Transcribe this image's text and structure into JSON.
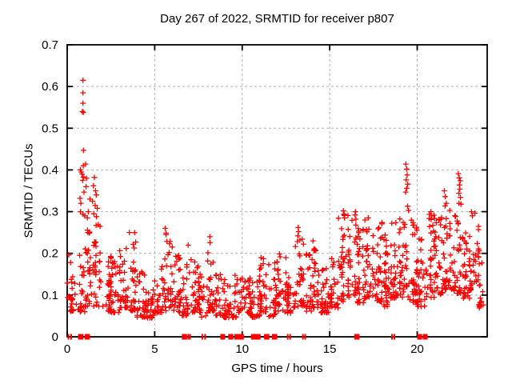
{
  "chart_data": {
    "type": "scatter",
    "title": "Day 267 of 2022, SRMTID for receiver p807",
    "xlabel": "GPS time / hours",
    "ylabel": "SRMTID / TECUs",
    "xlim": [
      0,
      24
    ],
    "ylim": [
      0,
      0.7
    ],
    "xtick_values": [
      0,
      5,
      10,
      15,
      20
    ],
    "xtick_labels": [
      "0",
      "5",
      "10",
      "15",
      "20"
    ],
    "ytick_values": [
      0,
      0.1,
      0.2,
      0.3,
      0.4,
      0.5,
      0.6,
      0.7
    ],
    "ytick_labels": [
      "0",
      "0.1",
      "0.2",
      "0.3",
      "0.4",
      "0.5",
      "0.6",
      "0.7"
    ],
    "grid": true,
    "legend": "none",
    "marker": {
      "shape": "plus",
      "color": "#ff0000",
      "size": 7
    },
    "points_explicit": [
      [
        0.9,
        0.615
      ],
      [
        0.9,
        0.585
      ],
      [
        0.9,
        0.56
      ],
      [
        0.87,
        0.54
      ],
      [
        0.92,
        0.538
      ],
      [
        0.93,
        0.447
      ],
      [
        0.92,
        0.41
      ],
      [
        1.05,
        0.414
      ],
      [
        0.75,
        0.4
      ],
      [
        0.8,
        0.395
      ],
      [
        0.85,
        0.39
      ],
      [
        0.92,
        0.383
      ],
      [
        0.88,
        0.375
      ],
      [
        1.1,
        0.38
      ],
      [
        1.08,
        0.36
      ],
      [
        0.96,
        0.347
      ],
      [
        0.73,
        0.332
      ],
      [
        0.78,
        0.32
      ],
      [
        1.55,
        0.382
      ],
      [
        1.5,
        0.362
      ],
      [
        1.62,
        0.35
      ],
      [
        1.66,
        0.34
      ],
      [
        1.3,
        0.33
      ],
      [
        1.45,
        0.325
      ],
      [
        1.6,
        0.315
      ],
      [
        1.72,
        0.308
      ],
      [
        0.76,
        0.3
      ],
      [
        0.9,
        0.294
      ],
      [
        1.2,
        0.3
      ],
      [
        1.52,
        0.295
      ],
      [
        1.67,
        0.288
      ],
      [
        1.0,
        0.29
      ],
      [
        1.15,
        0.285
      ],
      [
        3.55,
        0.25
      ],
      [
        5.6,
        0.26
      ],
      [
        5.65,
        0.245
      ],
      [
        8.15,
        0.24
      ],
      [
        13.2,
        0.262
      ],
      [
        13.22,
        0.252
      ],
      [
        13.18,
        0.242
      ],
      [
        13.3,
        0.232
      ],
      [
        14.05,
        0.23
      ],
      [
        15.78,
        0.302
      ],
      [
        15.82,
        0.294
      ],
      [
        15.85,
        0.285
      ],
      [
        16.45,
        0.292
      ],
      [
        16.5,
        0.282
      ],
      [
        17.2,
        0.285
      ],
      [
        19.35,
        0.414
      ],
      [
        19.4,
        0.402
      ],
      [
        19.43,
        0.388
      ],
      [
        19.37,
        0.376
      ],
      [
        19.46,
        0.366
      ],
      [
        19.4,
        0.356
      ],
      [
        19.34,
        0.347
      ],
      [
        19.5,
        0.303
      ],
      [
        19.45,
        0.313
      ],
      [
        20.78,
        0.3
      ],
      [
        20.83,
        0.29
      ],
      [
        21.55,
        0.35
      ],
      [
        21.6,
        0.336
      ],
      [
        21.66,
        0.32
      ],
      [
        22.35,
        0.391
      ],
      [
        22.4,
        0.381
      ],
      [
        22.46,
        0.374
      ],
      [
        22.41,
        0.364
      ],
      [
        22.43,
        0.354
      ],
      [
        22.38,
        0.344
      ],
      [
        22.47,
        0.334
      ],
      [
        22.5,
        0.318
      ],
      [
        23.1,
        0.3
      ],
      [
        23.15,
        0.29
      ],
      [
        23.55,
        0.069
      ],
      [
        23.57,
        0.075
      ]
    ],
    "density_bins_estimated": [
      [
        0.0,
        0.5,
        26,
        0.05,
        0.23
      ],
      [
        0.5,
        1.0,
        22,
        0.05,
        0.2
      ],
      [
        1.0,
        1.5,
        28,
        0.06,
        0.26
      ],
      [
        1.5,
        2.0,
        28,
        0.06,
        0.28
      ],
      [
        2.0,
        2.5,
        30,
        0.05,
        0.21
      ],
      [
        2.5,
        3.0,
        30,
        0.05,
        0.18
      ],
      [
        3.0,
        3.5,
        30,
        0.06,
        0.22
      ],
      [
        3.5,
        4.0,
        30,
        0.05,
        0.25
      ],
      [
        4.0,
        4.5,
        30,
        0.04,
        0.16
      ],
      [
        4.5,
        5.0,
        30,
        0.04,
        0.13
      ],
      [
        5.0,
        5.5,
        30,
        0.05,
        0.17
      ],
      [
        5.5,
        6.0,
        30,
        0.05,
        0.26
      ],
      [
        6.0,
        6.5,
        30,
        0.05,
        0.2
      ],
      [
        6.5,
        7.0,
        26,
        0.04,
        0.22
      ],
      [
        7.0,
        7.5,
        26,
        0.05,
        0.2
      ],
      [
        7.5,
        8.0,
        26,
        0.04,
        0.16
      ],
      [
        8.0,
        8.5,
        30,
        0.05,
        0.24
      ],
      [
        8.5,
        9.0,
        24,
        0.04,
        0.15
      ],
      [
        9.0,
        9.5,
        24,
        0.04,
        0.14
      ],
      [
        9.5,
        10.0,
        24,
        0.04,
        0.15
      ],
      [
        10.0,
        10.5,
        30,
        0.05,
        0.16
      ],
      [
        10.5,
        11.0,
        28,
        0.04,
        0.15
      ],
      [
        11.0,
        11.5,
        30,
        0.05,
        0.2
      ],
      [
        11.5,
        12.0,
        28,
        0.04,
        0.18
      ],
      [
        12.0,
        12.5,
        30,
        0.05,
        0.21
      ],
      [
        12.5,
        13.0,
        26,
        0.05,
        0.16
      ],
      [
        13.0,
        13.5,
        30,
        0.06,
        0.26
      ],
      [
        13.5,
        14.0,
        26,
        0.05,
        0.2
      ],
      [
        14.0,
        14.5,
        30,
        0.06,
        0.23
      ],
      [
        14.5,
        15.0,
        30,
        0.05,
        0.18
      ],
      [
        15.0,
        15.5,
        30,
        0.06,
        0.2
      ],
      [
        15.5,
        16.0,
        32,
        0.07,
        0.3
      ],
      [
        16.0,
        16.5,
        34,
        0.08,
        0.3
      ],
      [
        16.5,
        17.0,
        34,
        0.07,
        0.26
      ],
      [
        17.0,
        17.5,
        34,
        0.08,
        0.28
      ],
      [
        17.5,
        18.0,
        34,
        0.07,
        0.29
      ],
      [
        18.0,
        18.5,
        34,
        0.06,
        0.25
      ],
      [
        18.5,
        19.0,
        34,
        0.08,
        0.28
      ],
      [
        19.0,
        19.5,
        34,
        0.08,
        0.3
      ],
      [
        19.5,
        20.0,
        34,
        0.07,
        0.28
      ],
      [
        20.0,
        20.5,
        30,
        0.06,
        0.25
      ],
      [
        20.5,
        21.0,
        34,
        0.08,
        0.3
      ],
      [
        21.0,
        21.5,
        34,
        0.09,
        0.29
      ],
      [
        21.5,
        22.0,
        34,
        0.1,
        0.32
      ],
      [
        22.0,
        22.5,
        34,
        0.09,
        0.33
      ],
      [
        22.5,
        23.0,
        34,
        0.08,
        0.28
      ],
      [
        23.0,
        23.5,
        30,
        0.1,
        0.3
      ],
      [
        23.5,
        23.8,
        15,
        0.06,
        0.25
      ]
    ],
    "zero_gap_squares": [
      [
        0.62,
        0.93
      ],
      [
        1.0,
        1.3
      ],
      [
        6.55,
        6.85
      ],
      [
        8.75,
        8.95
      ],
      [
        9.2,
        9.5
      ],
      [
        9.55,
        9.75
      ],
      [
        9.82,
        10.0
      ],
      [
        10.5,
        11.05
      ],
      [
        11.25,
        11.55
      ],
      [
        11.7,
        12.0
      ],
      [
        16.4,
        16.7
      ],
      [
        20.0,
        20.25
      ],
      [
        20.32,
        20.55
      ]
    ],
    "zero_gap_ticks": [
      0.07,
      0.23,
      6.92,
      7.02,
      7.72,
      7.88,
      12.6,
      12.74,
      13.47,
      13.6,
      18.56,
      18.7
    ]
  },
  "colors": {
    "marker": "#ff0000",
    "grid": "#b0b0b0",
    "axis": "#000000",
    "background": "#ffffff",
    "text": "#000000"
  }
}
